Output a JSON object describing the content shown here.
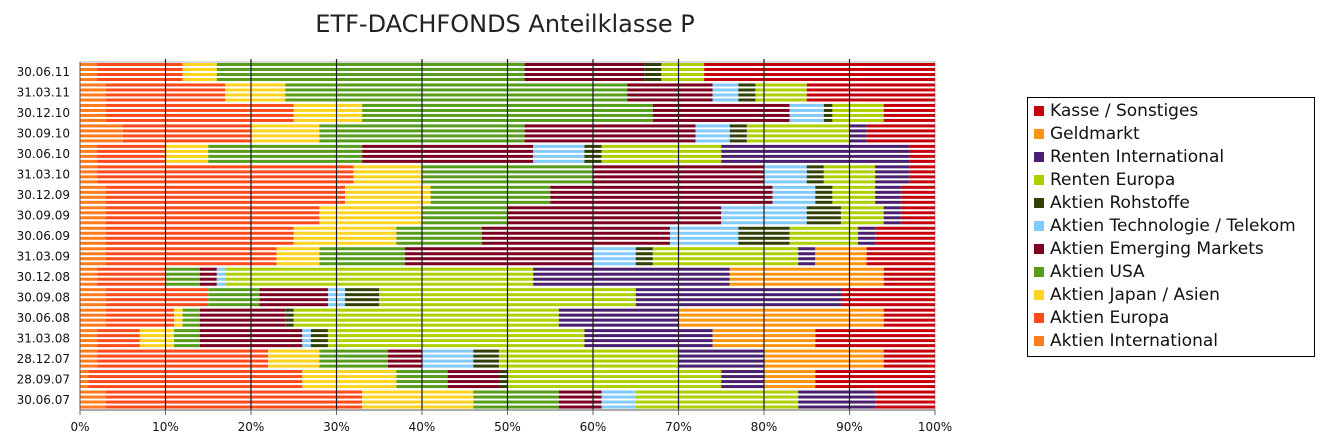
{
  "chart_data": {
    "type": "bar",
    "orientation": "horizontal",
    "stacked": "percent",
    "title": "ETF-DACHFONDS Anteilklasse P",
    "xlabel": "",
    "ylabel": "",
    "xlim": [
      0,
      100
    ],
    "x_ticks": [
      "0%",
      "10%",
      "20%",
      "30%",
      "40%",
      "50%",
      "60%",
      "70%",
      "80%",
      "90%",
      "100%"
    ],
    "y_tick_labels": [
      "30.06.11",
      "31.03.11",
      "30.12.10",
      "30.09.10",
      "30.06.10",
      "31.03.10",
      "30.12.09",
      "30.09.09",
      "30.06.09",
      "31.03.09",
      "30.12.08",
      "30.09.08",
      "30.06.08",
      "31.03.08",
      "28.12.07",
      "28.09.07",
      "30.06.07"
    ],
    "grid": true,
    "legend_position": "right",
    "series": [
      {
        "name": "Aktien International",
        "color": "#FF7B1C"
      },
      {
        "name": "Aktien Europa",
        "color": "#FF4A1C"
      },
      {
        "name": "Aktien Japan / Asien",
        "color": "#FFD420"
      },
      {
        "name": "Aktien USA",
        "color": "#579D1C"
      },
      {
        "name": "Aktien Emerging Markets",
        "color": "#7E0021"
      },
      {
        "name": "Aktien Technologie / Telekom",
        "color": "#83CAFF"
      },
      {
        "name": "Aktien Rohstoffe",
        "color": "#314004"
      },
      {
        "name": "Renten Europa",
        "color": "#AECF00"
      },
      {
        "name": "Renten International",
        "color": "#4B1F6F"
      },
      {
        "name": "Geldmarkt",
        "color": "#FF950E"
      },
      {
        "name": "Kasse / Sonstiges",
        "color": "#C5000B"
      }
    ],
    "periods": [
      {
        "label": "30.06.11",
        "values": [
          2,
          10,
          4,
          36,
          14,
          0,
          2,
          5,
          0,
          0,
          27
        ]
      },
      {
        "label": "31.03.11",
        "values": [
          3,
          14,
          7,
          40,
          10,
          3,
          2,
          6,
          0,
          0,
          15
        ]
      },
      {
        "label": "30.12.10",
        "values": [
          3,
          22,
          8,
          34,
          16,
          4,
          1,
          6,
          0,
          0,
          6
        ]
      },
      {
        "label": "30.09.10",
        "values": [
          5,
          15,
          8,
          24,
          20,
          4,
          2,
          12,
          2,
          0,
          8
        ]
      },
      {
        "label": "30.06.10",
        "values": [
          2,
          8,
          5,
          18,
          20,
          6,
          2,
          14,
          22,
          0,
          3
        ]
      },
      {
        "label": "31.03.10",
        "values": [
          2,
          30,
          8,
          20,
          20,
          5,
          2,
          6,
          4,
          0,
          3
        ]
      },
      {
        "label": "30.12.09",
        "values": [
          3,
          28,
          10,
          14,
          26,
          5,
          2,
          5,
          3,
          0,
          4
        ]
      },
      {
        "label": "30.09.09",
        "values": [
          3,
          25,
          12,
          10,
          25,
          10,
          4,
          5,
          2,
          0,
          4
        ]
      },
      {
        "label": "30.06.09",
        "values": [
          3,
          22,
          12,
          10,
          22,
          8,
          6,
          8,
          2,
          0,
          7
        ]
      },
      {
        "label": "31.03.09",
        "values": [
          3,
          20,
          5,
          10,
          22,
          5,
          2,
          17,
          2,
          6,
          8
        ]
      },
      {
        "label": "30.12.08",
        "values": [
          2,
          8,
          0,
          4,
          2,
          1,
          0,
          36,
          23,
          18,
          6
        ]
      },
      {
        "label": "30.09.08",
        "values": [
          3,
          12,
          0,
          6,
          8,
          2,
          4,
          30,
          24,
          0,
          11
        ]
      },
      {
        "label": "30.06.08",
        "values": [
          3,
          8,
          1,
          2,
          10,
          0,
          1,
          31,
          14,
          24,
          6
        ]
      },
      {
        "label": "31.03.08",
        "values": [
          2,
          5,
          4,
          3,
          12,
          1,
          2,
          30,
          15,
          12,
          14
        ]
      },
      {
        "label": "28.12.07",
        "values": [
          2,
          20,
          6,
          8,
          4,
          6,
          3,
          21,
          10,
          14,
          6
        ]
      },
      {
        "label": "28.09.07",
        "values": [
          1,
          25,
          11,
          6,
          6,
          0,
          1,
          25,
          5,
          6,
          14
        ]
      },
      {
        "label": "30.06.07",
        "values": [
          3,
          30,
          13,
          10,
          5,
          4,
          0,
          19,
          9,
          0,
          7
        ]
      }
    ]
  }
}
